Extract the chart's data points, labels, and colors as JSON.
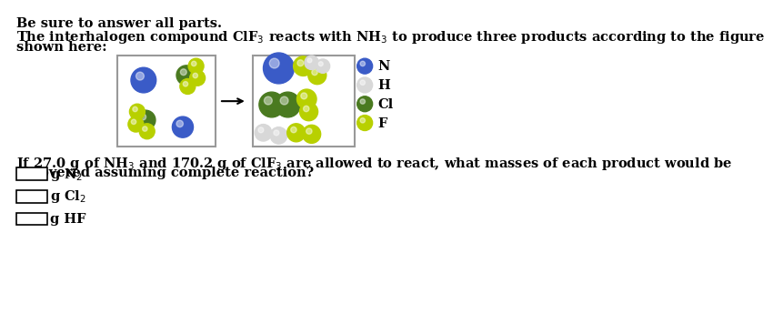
{
  "title": "Be sure to answer all parts.",
  "para1": "The interhalogen compound ClF$_3$ reacts with NH$_3$ to produce three products according to the figure",
  "para2": "shown here:",
  "q1": "If 27.0 g of NH$_3$ and 170.2 g of ClF$_3$ are allowed to react, what masses of each product would be",
  "q2": "recovered assuming complete reaction?",
  "labels": [
    "g N$_2$",
    "g Cl$_2$",
    "g HF"
  ],
  "legend_labels": [
    "N",
    "H",
    "Cl",
    "F"
  ],
  "color_N": "#3a5bc7",
  "color_H": "#d8d8d8",
  "color_Cl_dark": "#4a7a20",
  "color_Cl_light": "#8ab520",
  "color_F": "#b8d000",
  "bg": "#ffffff",
  "box_edge": "#999999",
  "font_size": 10.5
}
